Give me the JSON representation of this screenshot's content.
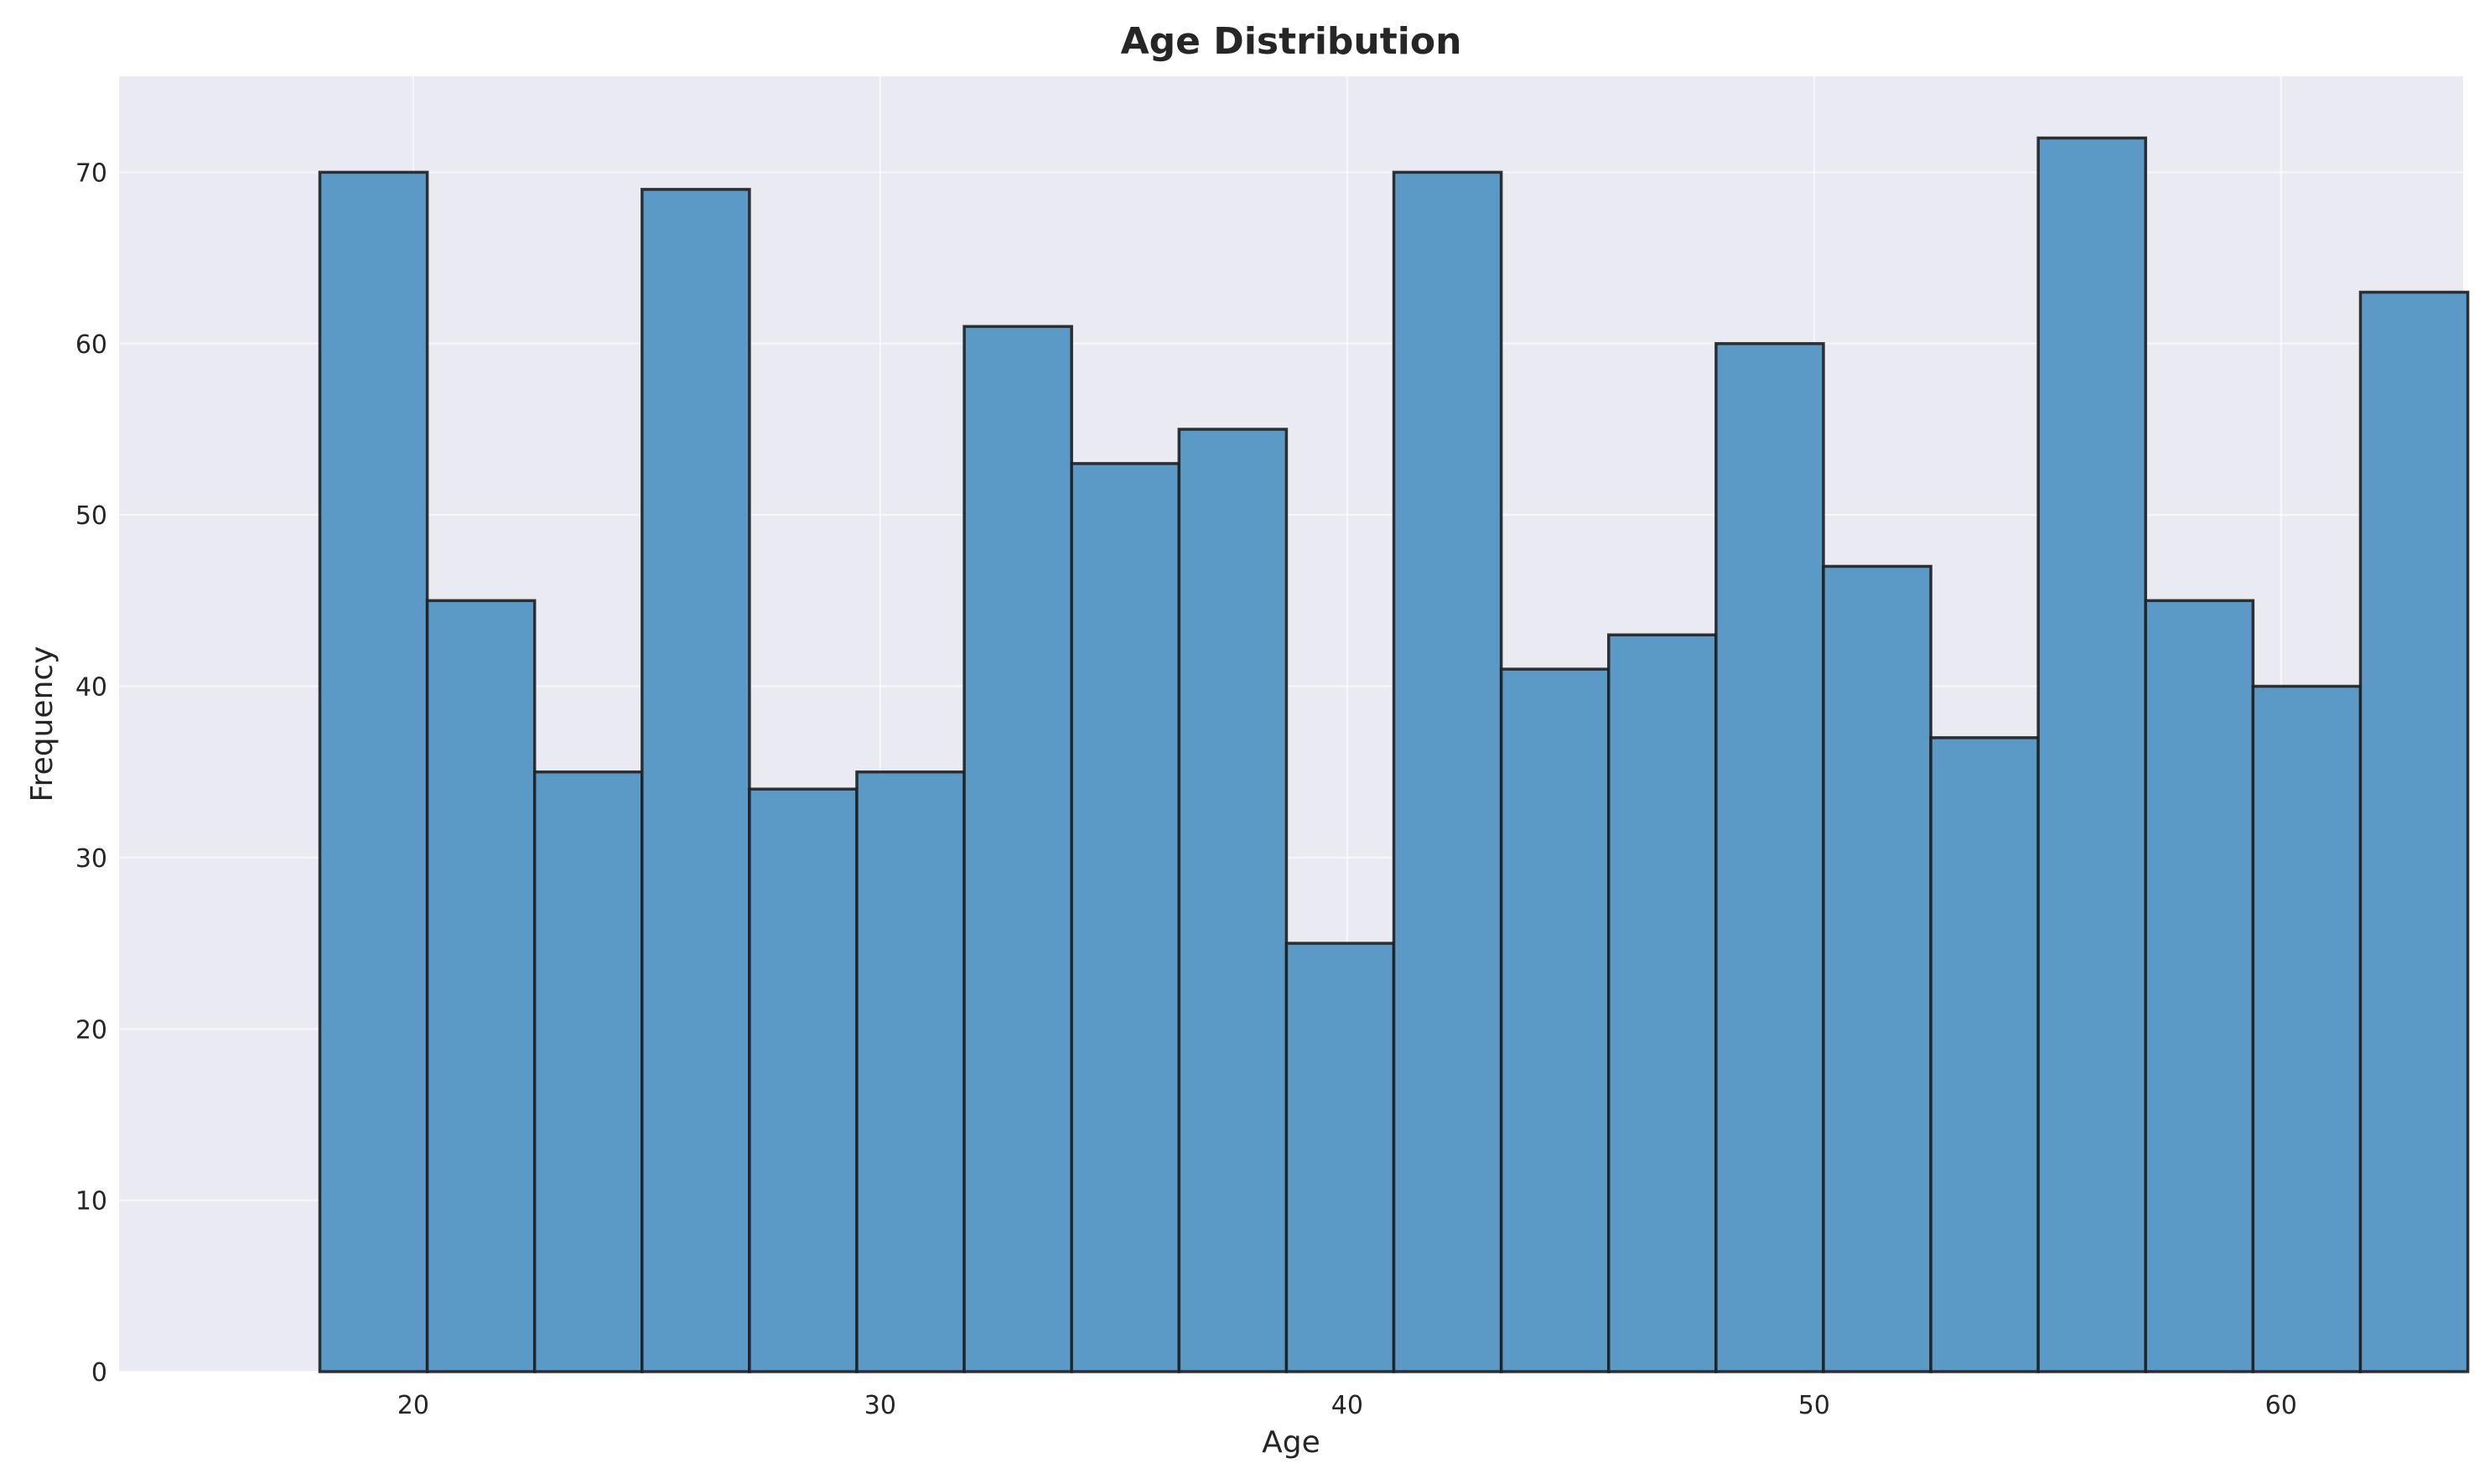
{
  "chart_data": {
    "type": "bar",
    "title": "Age Distribution",
    "xlabel": "Age",
    "ylabel": "Frequency",
    "bin_edges": [
      18,
      20.3,
      22.6,
      24.9,
      27.2,
      29.5,
      31.8,
      34.1,
      36.4,
      38.7,
      41.0,
      43.3,
      45.6,
      47.9,
      50.2,
      52.5,
      54.8,
      57.1,
      59.4,
      61.7,
      64
    ],
    "values": [
      70,
      45,
      35,
      69,
      34,
      35,
      61,
      53,
      55,
      25,
      70,
      41,
      43,
      60,
      47,
      37,
      72,
      45,
      40,
      63
    ],
    "xlim": [
      13.7,
      63.9
    ],
    "ylim": [
      0,
      75.6
    ],
    "x_ticks": [
      20,
      30,
      40,
      50,
      60
    ],
    "y_ticks": [
      0,
      10,
      20,
      30,
      40,
      50,
      60,
      70
    ],
    "grid": true,
    "colors": {
      "bar_fill": "#5b9ac6",
      "bar_edge": "#1f1f1f",
      "plot_background": "#eaeaf2",
      "grid": "#ffffff"
    }
  }
}
